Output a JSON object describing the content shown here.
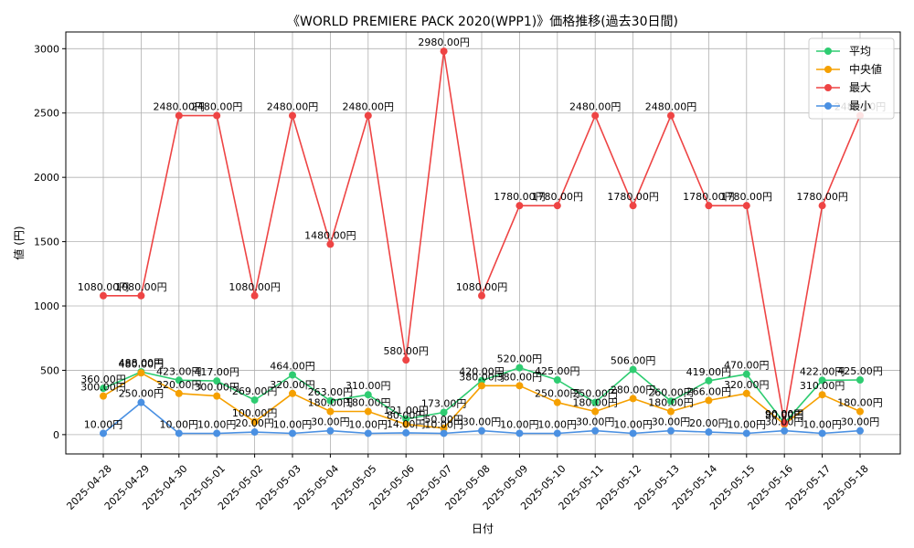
{
  "chart_data": {
    "type": "line",
    "title": "《WORLD PREMIERE PACK 2020(WPP1)》価格推移(過去30日間)",
    "xlabel": "日付",
    "ylabel": "値 (円)",
    "ylim": [
      -150,
      3130
    ],
    "yticks": [
      0,
      500,
      1000,
      1500,
      2000,
      2500,
      3000
    ],
    "grid": true,
    "legend_position": "top-right",
    "label_suffix": "円",
    "categories": [
      "2025-04-28",
      "2025-04-29",
      "2025-04-30",
      "2025-05-01",
      "2025-05-02",
      "2025-05-03",
      "2025-05-04",
      "2025-05-05",
      "2025-05-06",
      "2025-05-07",
      "2025-05-08",
      "2025-05-09",
      "2025-05-10",
      "2025-05-11",
      "2025-05-12",
      "2025-05-13",
      "2025-05-14",
      "2025-05-15",
      "2025-05-16",
      "2025-05-17",
      "2025-05-18"
    ],
    "series": [
      {
        "name": "平均",
        "color": "#2ecc71",
        "values": [
          360,
          488,
          423,
          417,
          269,
          464,
          263,
          310,
          121,
          173,
          420,
          520,
          425,
          250,
          506,
          260,
          419,
          470,
          90,
          422,
          425
        ]
      },
      {
        "name": "中央値",
        "color": "#f5a000",
        "values": [
          300,
          480,
          320,
          300,
          100,
          320,
          180,
          180,
          80,
          50,
          380,
          380,
          250,
          180,
          280,
          180,
          266,
          320,
          80,
          310,
          180
        ]
      },
      {
        "name": "最大",
        "color": "#ee4444",
        "values": [
          1080,
          1080,
          2480,
          2480,
          1080,
          2480,
          1480,
          2480,
          580,
          2980,
          1080,
          1780,
          1780,
          2480,
          1780,
          2480,
          1780,
          1780,
          90,
          1780,
          2480
        ]
      },
      {
        "name": "最小",
        "color": "#4a90e2",
        "values": [
          10,
          250,
          10,
          10,
          20,
          10,
          30,
          10,
          14,
          10,
          30,
          10,
          10,
          30,
          10,
          30,
          20,
          10,
          30,
          10,
          30
        ]
      }
    ]
  }
}
